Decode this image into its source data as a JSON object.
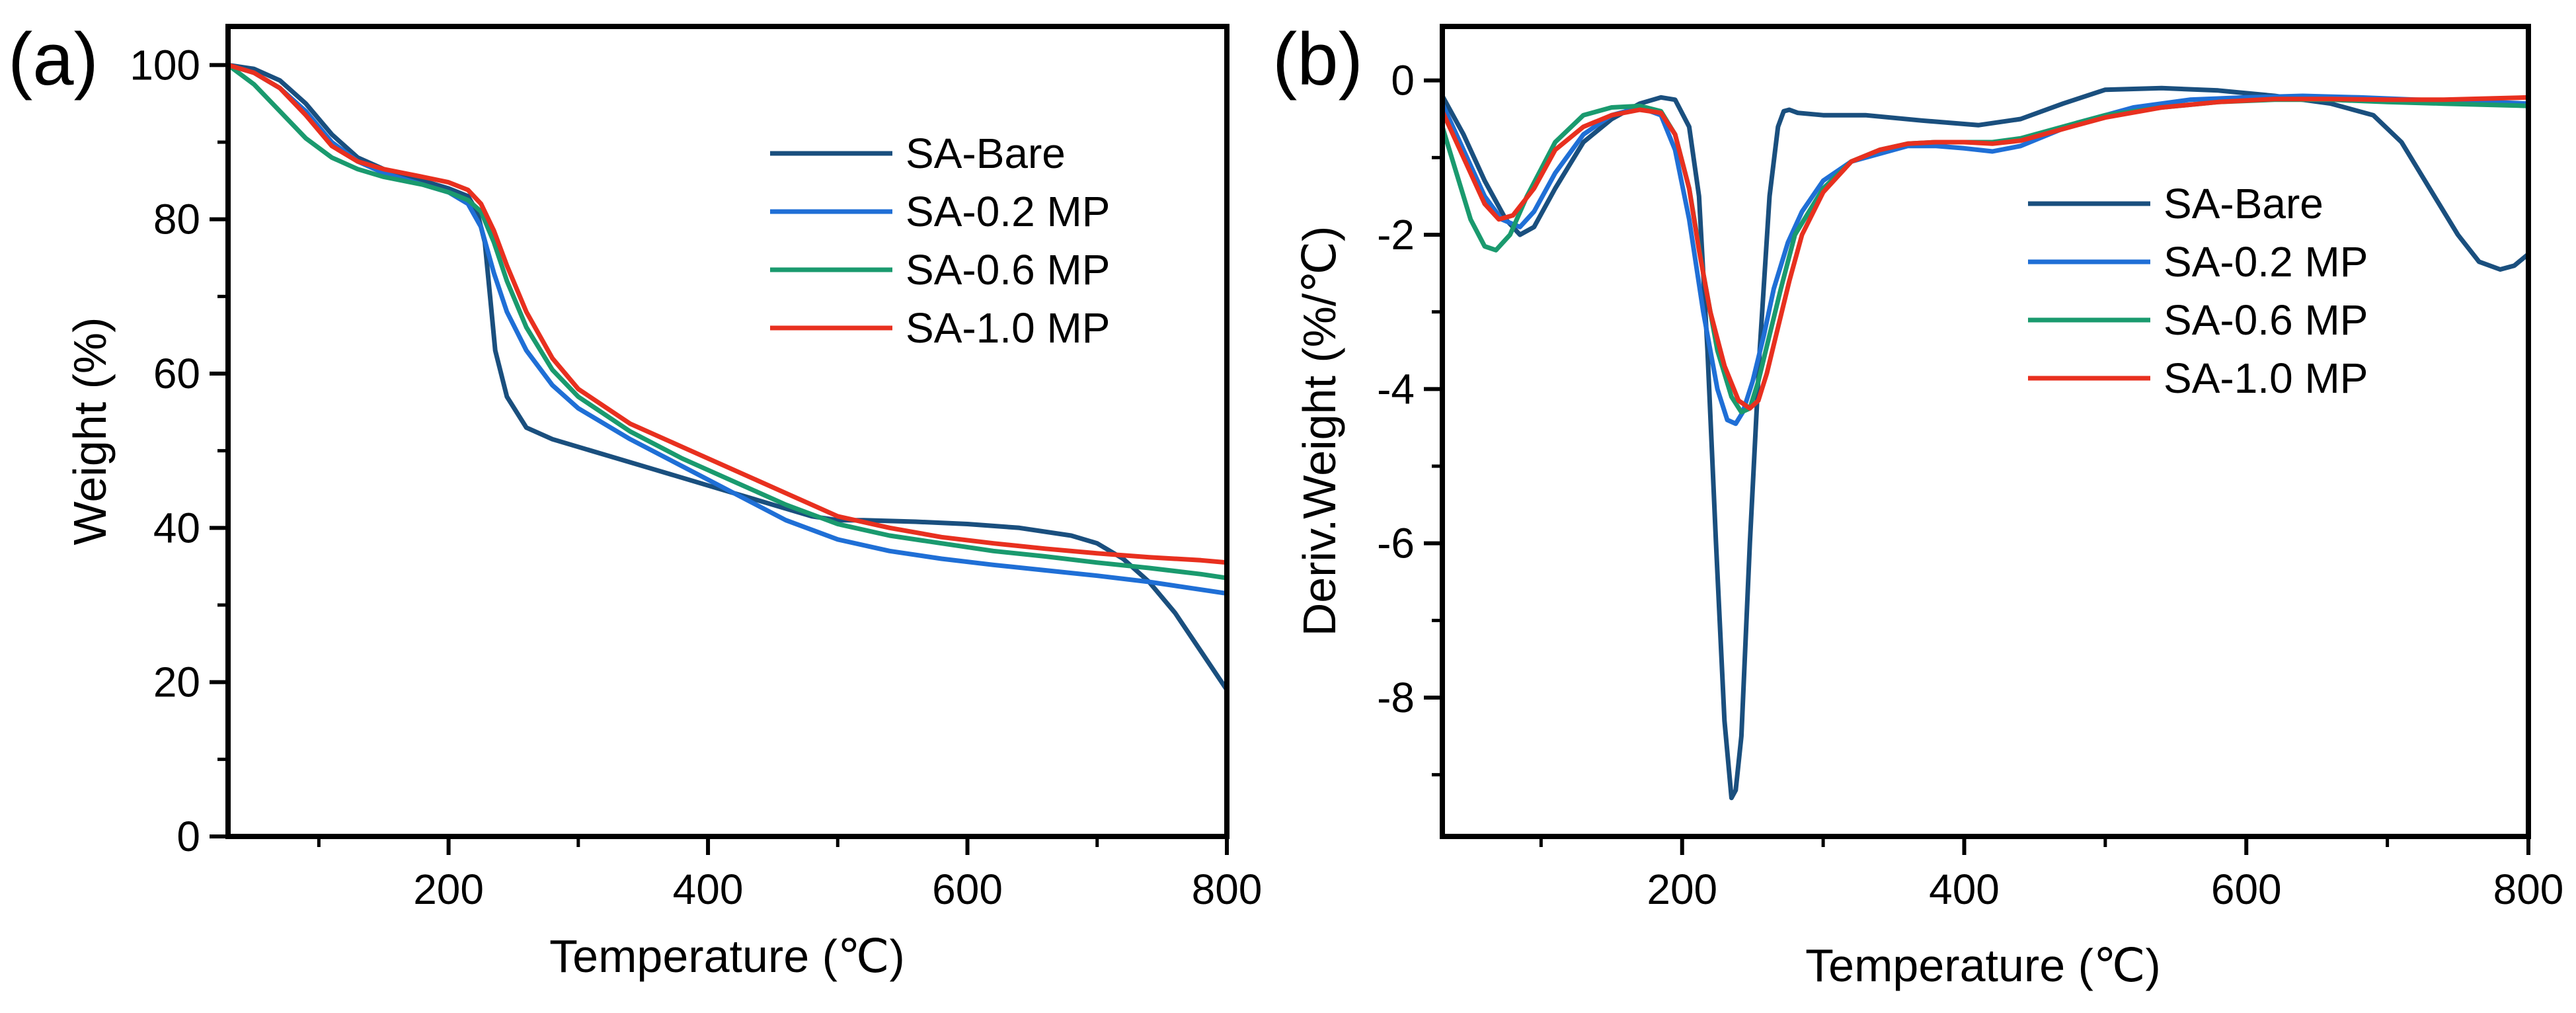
{
  "panels": {
    "a": {
      "label": "(a)"
    },
    "b": {
      "label": "(b)"
    }
  },
  "chart_data": [
    {
      "type": "line",
      "title": "",
      "xlabel": "Temperature (℃)",
      "ylabel": "Weight (%)",
      "xlim": [
        30,
        800
      ],
      "ylim": [
        0,
        105
      ],
      "xticks": [
        200,
        400,
        600,
        800
      ],
      "yticks": [
        0,
        20,
        40,
        60,
        80,
        100
      ],
      "grid": false,
      "legend_position": "top-right",
      "series": [
        {
          "name": "SA-Bare",
          "color": "#1a4f7e",
          "x": [
            30,
            50,
            70,
            90,
            110,
            130,
            150,
            180,
            200,
            215,
            222,
            228,
            232,
            236,
            245,
            260,
            280,
            320,
            360,
            400,
            440,
            480,
            500,
            520,
            560,
            600,
            640,
            680,
            700,
            720,
            740,
            760,
            780,
            800
          ],
          "y": [
            100,
            99.5,
            98,
            95,
            91,
            88,
            86.5,
            85,
            84,
            83,
            81,
            77,
            70,
            63,
            57,
            53,
            51.5,
            49.5,
            47.5,
            45.5,
            43.5,
            41.5,
            41,
            41,
            40.8,
            40.5,
            40,
            39,
            38,
            36,
            33,
            29,
            24,
            19
          ]
        },
        {
          "name": "SA-0.2 MP",
          "color": "#1f6fd6",
          "x": [
            30,
            50,
            70,
            90,
            110,
            130,
            150,
            180,
            200,
            215,
            225,
            235,
            245,
            260,
            280,
            300,
            340,
            380,
            420,
            460,
            500,
            540,
            580,
            620,
            660,
            700,
            740,
            780,
            800
          ],
          "y": [
            100,
            99,
            97,
            94,
            90,
            87.5,
            86,
            84.5,
            83.5,
            82,
            79,
            73,
            68,
            63,
            58.5,
            55.5,
            51.5,
            48,
            44.5,
            41,
            38.5,
            37,
            36,
            35.2,
            34.5,
            33.8,
            33,
            32,
            31.5
          ]
        },
        {
          "name": "SA-0.6 MP",
          "color": "#1a9a6e",
          "x": [
            30,
            50,
            70,
            90,
            110,
            130,
            150,
            180,
            200,
            215,
            225,
            235,
            245,
            260,
            280,
            300,
            340,
            380,
            420,
            460,
            500,
            540,
            580,
            620,
            660,
            700,
            740,
            780,
            800
          ],
          "y": [
            100,
            97.5,
            94,
            90.5,
            88,
            86.5,
            85.5,
            84.5,
            83.5,
            82.5,
            81,
            77,
            72,
            66,
            60.5,
            57,
            52.5,
            49,
            46,
            43,
            40.5,
            39,
            38,
            37,
            36.3,
            35.5,
            34.8,
            34,
            33.5
          ]
        },
        {
          "name": "SA-1.0 MP",
          "color": "#e8301f",
          "x": [
            30,
            50,
            70,
            90,
            110,
            130,
            150,
            180,
            200,
            215,
            225,
            235,
            245,
            260,
            280,
            300,
            340,
            380,
            420,
            460,
            500,
            540,
            580,
            620,
            660,
            700,
            740,
            780,
            800
          ],
          "y": [
            100,
            99,
            97,
            93.5,
            89.5,
            87.5,
            86.5,
            85.5,
            84.8,
            83.8,
            82,
            78.5,
            74,
            68,
            62,
            58,
            53.5,
            50.5,
            47.5,
            44.5,
            41.5,
            40,
            38.8,
            38,
            37.3,
            36.7,
            36.2,
            35.8,
            35.5
          ]
        }
      ]
    },
    {
      "type": "line",
      "title": "",
      "xlabel": "Temperature (℃)",
      "ylabel": "Deriv.Weight (%/℃)",
      "xlim": [
        30,
        800
      ],
      "ylim": [
        -9.8,
        0.7
      ],
      "xticks": [
        200,
        400,
        600,
        800
      ],
      "yticks": [
        0,
        -2,
        -4,
        -6,
        -8
      ],
      "grid": false,
      "legend_position": "top-right",
      "series": [
        {
          "name": "SA-Bare",
          "color": "#1a4f7e",
          "x": [
            30,
            45,
            60,
            75,
            85,
            95,
            110,
            130,
            150,
            170,
            185,
            195,
            205,
            212,
            218,
            224,
            230,
            235,
            238,
            242,
            248,
            255,
            262,
            268,
            272,
            276,
            282,
            300,
            330,
            370,
            410,
            440,
            470,
            500,
            540,
            580,
            620,
            660,
            690,
            710,
            730,
            750,
            765,
            780,
            790,
            800
          ],
          "y": [
            -0.2,
            -0.7,
            -1.3,
            -1.8,
            -2.0,
            -1.9,
            -1.4,
            -0.8,
            -0.5,
            -0.3,
            -0.22,
            -0.25,
            -0.6,
            -1.5,
            -3.5,
            -6.0,
            -8.3,
            -9.3,
            -9.2,
            -8.5,
            -6.0,
            -3.5,
            -1.5,
            -0.6,
            -0.4,
            -0.38,
            -0.42,
            -0.45,
            -0.45,
            -0.52,
            -0.58,
            -0.5,
            -0.3,
            -0.12,
            -0.1,
            -0.13,
            -0.2,
            -0.3,
            -0.45,
            -0.8,
            -1.4,
            -2.0,
            -2.35,
            -2.45,
            -2.4,
            -2.25
          ]
        },
        {
          "name": "SA-0.2 MP",
          "color": "#1f6fd6",
          "x": [
            30,
            45,
            60,
            72,
            85,
            95,
            110,
            130,
            150,
            170,
            185,
            195,
            205,
            215,
            225,
            232,
            238,
            243,
            250,
            258,
            265,
            275,
            285,
            300,
            320,
            340,
            360,
            380,
            400,
            420,
            440,
            460,
            480,
            500,
            520,
            560,
            600,
            640,
            680,
            720,
            760,
            800
          ],
          "y": [
            -0.3,
            -0.9,
            -1.5,
            -1.8,
            -1.9,
            -1.7,
            -1.2,
            -0.7,
            -0.45,
            -0.35,
            -0.45,
            -0.9,
            -1.8,
            -3.0,
            -4.0,
            -4.4,
            -4.45,
            -4.3,
            -3.9,
            -3.3,
            -2.7,
            -2.1,
            -1.7,
            -1.3,
            -1.05,
            -0.95,
            -0.85,
            -0.85,
            -0.88,
            -0.92,
            -0.85,
            -0.7,
            -0.55,
            -0.45,
            -0.35,
            -0.25,
            -0.22,
            -0.2,
            -0.22,
            -0.25,
            -0.27,
            -0.3
          ]
        },
        {
          "name": "SA-0.6 MP",
          "color": "#1a9a6e",
          "x": [
            30,
            40,
            50,
            60,
            68,
            78,
            90,
            110,
            130,
            150,
            170,
            185,
            195,
            205,
            215,
            225,
            235,
            242,
            248,
            254,
            262,
            270,
            280,
            300,
            320,
            340,
            360,
            380,
            400,
            420,
            440,
            460,
            480,
            500,
            540,
            580,
            620,
            660,
            700,
            740,
            780,
            800
          ],
          "y": [
            -0.6,
            -1.2,
            -1.8,
            -2.15,
            -2.2,
            -2.0,
            -1.5,
            -0.8,
            -0.45,
            -0.35,
            -0.33,
            -0.4,
            -0.7,
            -1.4,
            -2.5,
            -3.5,
            -4.1,
            -4.3,
            -4.25,
            -3.9,
            -3.3,
            -2.7,
            -2.0,
            -1.4,
            -1.05,
            -0.9,
            -0.82,
            -0.8,
            -0.8,
            -0.8,
            -0.75,
            -0.65,
            -0.55,
            -0.45,
            -0.35,
            -0.28,
            -0.25,
            -0.25,
            -0.28,
            -0.3,
            -0.32,
            -0.33
          ]
        },
        {
          "name": "SA-1.0 MP",
          "color": "#e8301f",
          "x": [
            30,
            45,
            60,
            70,
            80,
            95,
            110,
            130,
            150,
            170,
            185,
            195,
            205,
            212,
            220,
            230,
            240,
            248,
            254,
            260,
            268,
            276,
            285,
            300,
            320,
            340,
            360,
            380,
            400,
            420,
            440,
            460,
            480,
            500,
            540,
            580,
            620,
            660,
            700,
            740,
            780,
            800
          ],
          "y": [
            -0.4,
            -1.0,
            -1.6,
            -1.8,
            -1.75,
            -1.4,
            -0.9,
            -0.6,
            -0.45,
            -0.38,
            -0.42,
            -0.7,
            -1.4,
            -2.2,
            -3.0,
            -3.7,
            -4.15,
            -4.25,
            -4.15,
            -3.8,
            -3.2,
            -2.6,
            -2.0,
            -1.45,
            -1.05,
            -0.9,
            -0.82,
            -0.8,
            -0.8,
            -0.82,
            -0.78,
            -0.68,
            -0.58,
            -0.48,
            -0.35,
            -0.28,
            -0.24,
            -0.24,
            -0.25,
            -0.25,
            -0.23,
            -0.22
          ]
        }
      ]
    }
  ]
}
